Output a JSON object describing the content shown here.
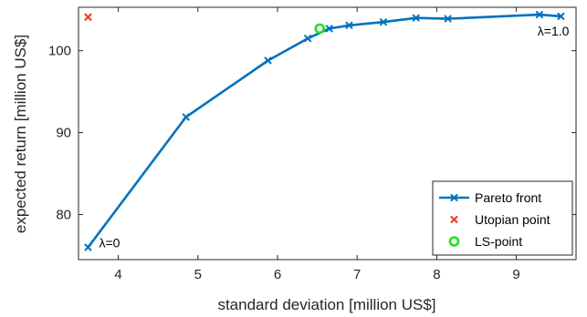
{
  "chart_data": {
    "type": "line",
    "xlabel": "standard deviation [million US$]",
    "ylabel": "expected return [million US$]",
    "xlim": [
      3.5,
      9.75
    ],
    "ylim": [
      74.5,
      105.3
    ],
    "xticks": [
      4,
      5,
      6,
      7,
      8,
      9
    ],
    "yticks": [
      80,
      90,
      100
    ],
    "grid": false,
    "legend_placement": "bottom-right",
    "series": [
      {
        "name": "Pareto front",
        "kind": "line-marker",
        "marker": "x",
        "color": "#0072BD",
        "x": [
          3.62,
          4.85,
          5.88,
          6.38,
          6.65,
          6.9,
          7.33,
          7.74,
          8.14,
          9.29,
          9.56
        ],
        "y": [
          76.0,
          91.9,
          98.8,
          101.5,
          102.7,
          103.1,
          103.5,
          104.0,
          103.9,
          104.4,
          104.2
        ]
      },
      {
        "name": "Utopian point",
        "kind": "marker",
        "marker": "x",
        "color": "#E8442E",
        "x": [
          3.62
        ],
        "y": [
          104.1
        ]
      },
      {
        "name": "LS-point",
        "kind": "marker",
        "marker": "circle",
        "color": "#22E022",
        "x": [
          6.53
        ],
        "y": [
          102.7
        ]
      }
    ],
    "annotations": [
      {
        "text": "λ=0",
        "x": 3.62,
        "y": 76.0
      },
      {
        "text": "λ=1.0",
        "x": 9.56,
        "y": 104.2
      }
    ]
  }
}
